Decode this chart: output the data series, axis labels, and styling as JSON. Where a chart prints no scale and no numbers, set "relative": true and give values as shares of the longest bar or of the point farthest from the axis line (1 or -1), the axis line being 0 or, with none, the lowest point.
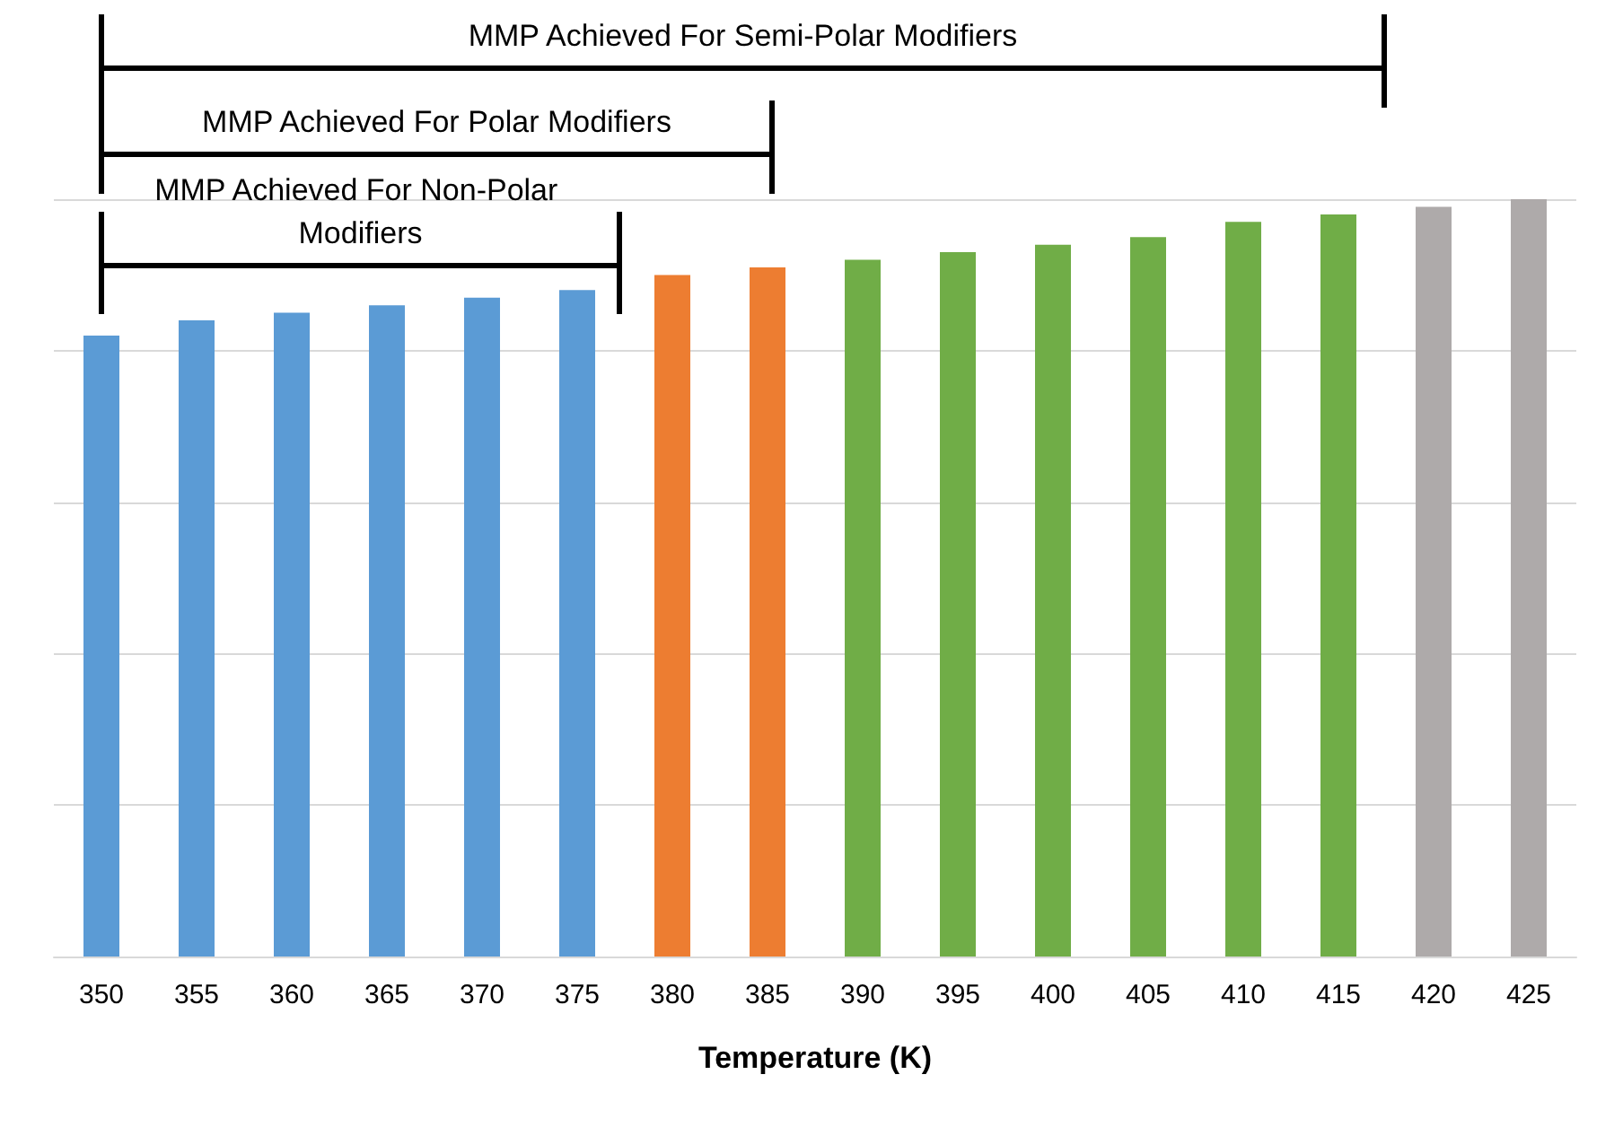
{
  "chart_data": {
    "type": "bar",
    "relative": true,
    "xlabel": "Temperature (K)",
    "grid": "y",
    "categories": [
      "350",
      "355",
      "360",
      "365",
      "370",
      "375",
      "380",
      "385",
      "390",
      "395",
      "400",
      "405",
      "410",
      "415",
      "420",
      "425"
    ],
    "values": [
      0.82,
      0.84,
      0.85,
      0.86,
      0.87,
      0.88,
      0.9,
      0.91,
      0.92,
      0.93,
      0.94,
      0.95,
      0.97,
      0.98,
      0.99,
      1
    ],
    "colors": [
      "#5b9bd5",
      "#5b9bd5",
      "#5b9bd5",
      "#5b9bd5",
      "#5b9bd5",
      "#5b9bd5",
      "#ed7d31",
      "#ed7d31",
      "#70ad47",
      "#70ad47",
      "#70ad47",
      "#70ad47",
      "#70ad47",
      "#70ad47",
      "#aeaaaa",
      "#aeaaaa"
    ],
    "annotations": [
      "MMP Achieved For Semi-Polar Modifiers",
      "MMP Achieved For Polar Modifiers",
      "MMP Achieved For Non-Polar Modifiers"
    ]
  }
}
